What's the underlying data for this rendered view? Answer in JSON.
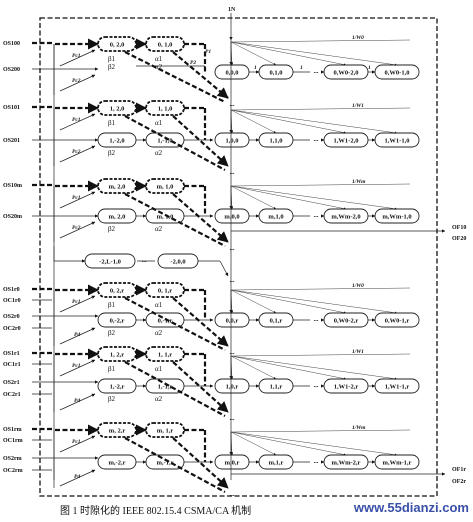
{
  "top_label": "1N",
  "rows": [
    {
      "side_left": "OS100",
      "side_right": "OS200",
      "p1": "P1",
      "p2": "P2",
      "pr1": "Pc1",
      "pr2": "Pc2",
      "beta1": "β1",
      "beta2": "β2",
      "alpha1": "α1",
      "alpha2": "α2",
      "upper": [
        "0, 2,0",
        "0, 1,0"
      ],
      "lower": [],
      "chain": [
        "0,0,0",
        "0,1,0",
        "0,W0-2,0",
        "0,W0-1,0"
      ],
      "weight": "1/W0",
      "ones": [
        "1",
        "1",
        "1"
      ]
    },
    {
      "side_left": "OS101",
      "side_right": "OS201",
      "pr1": "Pc1",
      "pr2": "Pc2",
      "beta1": "β1",
      "beta2": "β2",
      "alpha1": "α1",
      "alpha2": "α2",
      "upper": [
        "1, 2,0",
        "1, 1,0"
      ],
      "lower": [
        "1,-2,0",
        "1,-1,0"
      ],
      "chain": [
        "1,0,0",
        "1,1,0",
        "1,W1-2,0",
        "1,W1-1,0"
      ],
      "weight": "1/W1"
    },
    {
      "side_left": "OS10m",
      "side_right": "OS20m",
      "pr1": "Pc1",
      "pr2": "Pc2",
      "beta2": "β2",
      "alpha2": "α2",
      "upper": [
        "m, 2,0",
        "m, 1,0"
      ],
      "lower": [
        "m, 2,0",
        "m, 1,0"
      ],
      "chain": [
        "m,0,0",
        "m,1,0",
        "m,Wm-2,0",
        "m,Wm-1,0"
      ],
      "weight": "1/Wm"
    },
    {
      "mid": [
        "-2,L-1,0",
        "-2,0,0"
      ]
    },
    {
      "side_left": "OS1r0",
      "side_mid": "OC1r0",
      "side_right": "OS2r0",
      "side_right2": "OC2r0",
      "pr1": "Pc1",
      "pd": "Pd",
      "beta1": "β1",
      "beta2": "β2",
      "alpha1": "α1",
      "alpha2": "α2",
      "upper": [
        "0, 2,r",
        "0, 1,r"
      ],
      "lower": [
        "0,-2,r",
        "0,-1,r"
      ],
      "chain": [
        "0,0,r",
        "0,1,r",
        "0,W0-2,r",
        "0,W0-1,r"
      ],
      "weight": "1/W0"
    },
    {
      "side_left": "OS1r1",
      "side_mid": "OC1r1",
      "side_right": "OS2r1",
      "side_right2": "OC2r1",
      "pr1": "Pc1",
      "pd": "Pd",
      "beta1": "β1",
      "beta2": "β2",
      "alpha1": "α1",
      "alpha2": "α2",
      "upper": [
        "1, 2,r",
        "1, 1,r"
      ],
      "lower": [
        "1,-2,r",
        "1,-1,r"
      ],
      "chain": [
        "1,0,r",
        "1,1,r",
        "1,W1-2,r",
        "1,W1-1,r"
      ],
      "weight": "1/W1"
    },
    {
      "side_left": "OS1rm",
      "side_mid": "OC1rm",
      "side_right": "OS2rm",
      "side_right2": "OC2rm",
      "pr1": "Pc1",
      "pd": "Pd",
      "upper": [
        "m, 2,r",
        "m, 1,r"
      ],
      "lower": [
        "m,-2,r",
        "m,-1,r"
      ],
      "chain": [
        "m,0,r",
        "m,1,r",
        "m,Wm-2,r",
        "m,Wm-1,r"
      ],
      "weight": "1/Wm"
    }
  ],
  "out_labels": {
    "of10": "OF10",
    "of20": "OF20",
    "of1r": "OF1r",
    "of2r": "OF2r"
  },
  "dots": "...",
  "caption": "图 1    时隙化的 IEEE 802.15.4 CSMA/CA 机制",
  "watermark": "www.55dianzi.com"
}
